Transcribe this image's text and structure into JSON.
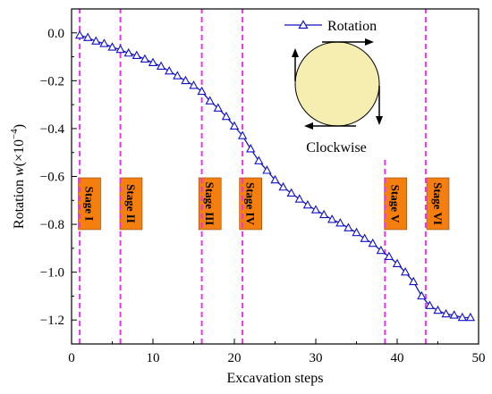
{
  "chart_data": {
    "type": "line",
    "title": "",
    "xlabel": "Excavation steps",
    "ylabel_main": "Rotation ",
    "ylabel_var": "w",
    "ylabel_unit_open": "(×10",
    "ylabel_exp": "−4",
    "ylabel_unit_close": ")",
    "xlim": [
      0,
      50
    ],
    "ylim": [
      -1.3,
      0.1
    ],
    "xticks": [
      0,
      10,
      20,
      30,
      40,
      50
    ],
    "xtick_labels": [
      "0",
      "10",
      "20",
      "30",
      "40",
      "50"
    ],
    "yticks": [
      0.0,
      -0.2,
      -0.4,
      -0.6,
      -0.8,
      -1.0,
      -1.2
    ],
    "ytick_labels": [
      "0.0",
      "−0.2",
      "−0.4",
      "−0.6",
      "−0.8",
      "−1.0",
      "−1.2"
    ],
    "grid": false,
    "legend_position": "top-right",
    "series": [
      {
        "name": "Rotation",
        "color": "#1010c8",
        "marker": "open-triangle",
        "x": [
          1,
          2,
          3,
          4,
          5,
          6,
          7,
          8,
          9,
          10,
          11,
          12,
          13,
          14,
          15,
          16,
          17,
          18,
          19,
          20,
          21,
          22,
          23,
          24,
          25,
          26,
          27,
          28,
          29,
          30,
          31,
          32,
          33,
          34,
          35,
          36,
          37,
          38,
          39,
          40,
          41,
          42,
          43,
          44,
          45,
          46,
          47,
          48,
          49
        ],
        "y": [
          -0.01,
          -0.02,
          -0.035,
          -0.045,
          -0.06,
          -0.07,
          -0.085,
          -0.095,
          -0.11,
          -0.125,
          -0.14,
          -0.16,
          -0.18,
          -0.2,
          -0.22,
          -0.245,
          -0.285,
          -0.315,
          -0.35,
          -0.39,
          -0.43,
          -0.485,
          -0.535,
          -0.575,
          -0.615,
          -0.645,
          -0.67,
          -0.695,
          -0.72,
          -0.74,
          -0.76,
          -0.78,
          -0.795,
          -0.815,
          -0.835,
          -0.86,
          -0.88,
          -0.91,
          -0.935,
          -0.965,
          -1.0,
          -1.04,
          -1.1,
          -1.14,
          -1.16,
          -1.175,
          -1.18,
          -1.19,
          -1.19
        ]
      }
    ],
    "stage_lines": {
      "color": "#ee33ee",
      "x": [
        1,
        6,
        16,
        21,
        38.5,
        43.5
      ],
      "ymax": [
        0.1,
        0.1,
        0.1,
        0.1,
        -0.52,
        0.1
      ]
    },
    "stages": [
      {
        "label": "Stage I",
        "x": 2.2
      },
      {
        "label": "Stage II",
        "x": 7.3
      },
      {
        "label": "Stage III",
        "x": 17.0
      },
      {
        "label": "Stage IV",
        "x": 22.0
      },
      {
        "label": "Stage V",
        "x": 39.8
      },
      {
        "label": "Stage VI",
        "x": 45.0
      }
    ],
    "stage_box_color": "#f47f0f",
    "annotation": {
      "text": "Clockwise",
      "circle_fill": "#f5eeb0"
    }
  }
}
